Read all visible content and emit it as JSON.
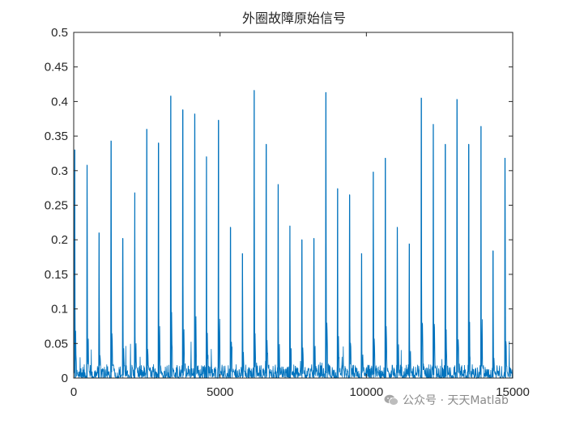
{
  "chart_data": {
    "type": "line",
    "title": "外圈故障原始信号",
    "xlabel": "",
    "ylabel": "",
    "xlim": [
      0,
      15000
    ],
    "ylim": [
      0,
      0.5
    ],
    "xticks": [
      0,
      5000,
      10000,
      15000
    ],
    "xtick_labels": [
      "0",
      "5000",
      "10000",
      "15000"
    ],
    "yticks": [
      0,
      0.05,
      0.1,
      0.15,
      0.2,
      0.25,
      0.3,
      0.35,
      0.4,
      0.45,
      0.5
    ],
    "ytick_labels": [
      "0",
      "0.05",
      "0.1",
      "0.15",
      "0.2",
      "0.25",
      "0.3",
      "0.35",
      "0.4",
      "0.45",
      "0.5"
    ],
    "grid": false,
    "legend": "none",
    "series_color": "#0072BD",
    "baseline_noise": 0.02,
    "peaks": [
      {
        "x": 40,
        "y": 0.33
      },
      {
        "x": 460,
        "y": 0.308
      },
      {
        "x": 870,
        "y": 0.21
      },
      {
        "x": 1280,
        "y": 0.343
      },
      {
        "x": 1680,
        "y": 0.202
      },
      {
        "x": 2090,
        "y": 0.268
      },
      {
        "x": 2500,
        "y": 0.36
      },
      {
        "x": 2900,
        "y": 0.34
      },
      {
        "x": 3320,
        "y": 0.408
      },
      {
        "x": 3730,
        "y": 0.388
      },
      {
        "x": 4140,
        "y": 0.382
      },
      {
        "x": 4540,
        "y": 0.32
      },
      {
        "x": 4950,
        "y": 0.373
      },
      {
        "x": 5360,
        "y": 0.218
      },
      {
        "x": 5770,
        "y": 0.18
      },
      {
        "x": 6170,
        "y": 0.416
      },
      {
        "x": 6580,
        "y": 0.338
      },
      {
        "x": 6990,
        "y": 0.28
      },
      {
        "x": 7390,
        "y": 0.22
      },
      {
        "x": 7800,
        "y": 0.2
      },
      {
        "x": 8210,
        "y": 0.202
      },
      {
        "x": 8620,
        "y": 0.413
      },
      {
        "x": 9020,
        "y": 0.274
      },
      {
        "x": 9430,
        "y": 0.265
      },
      {
        "x": 9840,
        "y": 0.18
      },
      {
        "x": 10240,
        "y": 0.298
      },
      {
        "x": 10650,
        "y": 0.318
      },
      {
        "x": 11060,
        "y": 0.218
      },
      {
        "x": 11470,
        "y": 0.194
      },
      {
        "x": 11880,
        "y": 0.405
      },
      {
        "x": 12290,
        "y": 0.367
      },
      {
        "x": 12700,
        "y": 0.338
      },
      {
        "x": 13100,
        "y": 0.403
      },
      {
        "x": 13500,
        "y": 0.338
      },
      {
        "x": 13920,
        "y": 0.364
      },
      {
        "x": 14330,
        "y": 0.184
      },
      {
        "x": 14740,
        "y": 0.318
      }
    ]
  },
  "watermark": {
    "icon": "wechat-icon",
    "text": "公众号 · 天天Matlab"
  }
}
